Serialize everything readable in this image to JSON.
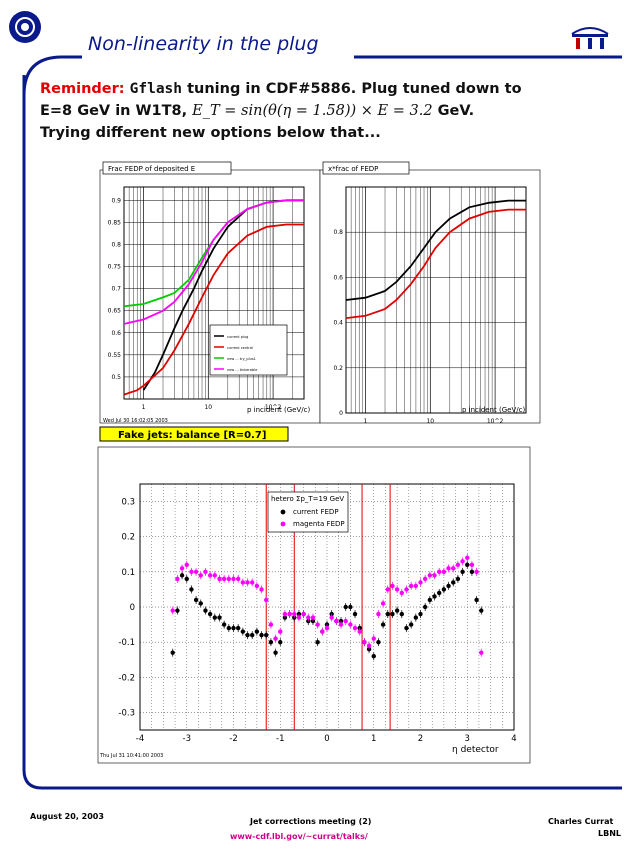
{
  "header": {
    "title": "Non-linearity in the plug"
  },
  "reminder": {
    "label": "Reminder:",
    "code": "Gflash",
    "line1_rest": " tuning in CDF#5886. Plug tuned down to",
    "line2_pre": "E=8 GeV in W1T8, ",
    "line2_formula": "E_T = sin(θ(η = 1.58)) × E = 3.2",
    "line2_post": " GeV.",
    "line3": "Trying different new options below that..."
  },
  "charts": {
    "top_left": {
      "title": "Frac FEDP of deposited E",
      "xlabel": "p incident (GeV/c)",
      "date": "Wed Jul 30 16:02:05 2003",
      "legend": [
        "current plug",
        "current central",
        "new ... try_plus1",
        "new ... tinkerable"
      ]
    },
    "top_right": {
      "title": "x*frac of FEDP",
      "xlabel": "p incident (GeV/c)"
    },
    "bottom": {
      "label": "Fake jets: balance [R=0.7]",
      "xlabel": "η detector",
      "date": "Thu Jul 31 10:41:00 2003",
      "legend_title": "hetero Σp_T=19 GeV",
      "legend": [
        "current FEDP",
        "magenta FEDP"
      ]
    }
  },
  "chart_data": [
    {
      "type": "line",
      "title": "Frac FEDP of deposited E",
      "xlabel": "p incident (GeV/c)",
      "xscale": "log",
      "xlim": [
        0.5,
        300
      ],
      "ylim": [
        0.45,
        0.93
      ],
      "ytick_labels": [
        "0.5",
        "0.55",
        "0.6",
        "0.65",
        "0.7",
        "0.75",
        "0.8",
        "0.85",
        "0.9"
      ],
      "xtick_labels": [
        "1",
        "10",
        "10^2"
      ],
      "grid": true,
      "legend_placement": "bottom-right",
      "series": [
        {
          "name": "current plug",
          "color": "#000000",
          "x": [
            1.0,
            1.5,
            2,
            3,
            4,
            6,
            8,
            12,
            20,
            40,
            80,
            160,
            300
          ],
          "y": [
            0.47,
            0.51,
            0.55,
            0.61,
            0.65,
            0.7,
            0.74,
            0.79,
            0.84,
            0.88,
            0.895,
            0.9,
            0.9
          ]
        },
        {
          "name": "current central",
          "color": "#e00000",
          "x": [
            0.5,
            0.8,
            1,
            2,
            3,
            5,
            8,
            12,
            20,
            40,
            80,
            160,
            300
          ],
          "y": [
            0.46,
            0.47,
            0.48,
            0.52,
            0.56,
            0.62,
            0.68,
            0.73,
            0.78,
            0.82,
            0.84,
            0.845,
            0.845
          ]
        },
        {
          "name": "new ... try_plus1",
          "color": "#00cc00",
          "x": [
            0.5,
            1,
            2,
            3,
            5,
            8,
            12,
            20,
            40,
            80,
            160,
            300
          ],
          "y": [
            0.66,
            0.665,
            0.68,
            0.69,
            0.72,
            0.77,
            0.81,
            0.85,
            0.88,
            0.895,
            0.9,
            0.9
          ]
        },
        {
          "name": "new ... tinkerable",
          "color": "#ff00ff",
          "x": [
            0.5,
            1,
            2,
            3,
            5,
            8,
            12,
            20,
            40,
            80,
            160,
            300
          ],
          "y": [
            0.62,
            0.63,
            0.65,
            0.67,
            0.71,
            0.76,
            0.81,
            0.85,
            0.88,
            0.895,
            0.9,
            0.9
          ]
        }
      ]
    },
    {
      "type": "line",
      "title": "x*frac of FEDP",
      "xlabel": "p incident (GeV/c)",
      "xscale": "log",
      "xlim": [
        0.5,
        300
      ],
      "ylim": [
        0,
        1.0
      ],
      "ytick_labels": [
        "0",
        "0.2",
        "0.4",
        "0.6",
        "0.8"
      ],
      "xtick_labels": [
        "1",
        "10",
        "10^2"
      ],
      "grid": true,
      "series": [
        {
          "name": "",
          "color": "#000000",
          "x": [
            0.5,
            1,
            2,
            3,
            5,
            8,
            12,
            20,
            40,
            80,
            160,
            300
          ],
          "y": [
            0.5,
            0.51,
            0.54,
            0.58,
            0.65,
            0.73,
            0.8,
            0.86,
            0.91,
            0.93,
            0.94,
            0.94
          ]
        },
        {
          "name": "",
          "color": "#e00000",
          "x": [
            0.5,
            1,
            2,
            3,
            5,
            8,
            12,
            20,
            40,
            80,
            160,
            300
          ],
          "y": [
            0.42,
            0.43,
            0.46,
            0.5,
            0.57,
            0.65,
            0.73,
            0.8,
            0.86,
            0.89,
            0.9,
            0.9
          ]
        }
      ]
    },
    {
      "type": "scatter",
      "title": "Fake jets: balance [R=0.7]",
      "xlabel": "η detector",
      "xlim": [
        -4,
        4
      ],
      "ylim": [
        -0.35,
        0.35
      ],
      "ytick_labels": [
        "-0.3",
        "-0.2",
        "-0.1",
        "0",
        "0.1",
        "0.2",
        "0.3"
      ],
      "xtick_labels": [
        "-4",
        "-3",
        "-2",
        "-1",
        "0",
        "1",
        "2",
        "3",
        "4"
      ],
      "grid": true,
      "legend_placement": "top-right",
      "vertical_lines": [
        -1.3,
        -0.7,
        0.75,
        1.35
      ],
      "series": [
        {
          "name": "current FEDP",
          "color": "#000000",
          "x": [
            -3.3,
            -3.2,
            -3.1,
            -3.0,
            -2.9,
            -2.8,
            -2.7,
            -2.6,
            -2.5,
            -2.4,
            -2.3,
            -2.2,
            -2.1,
            -2.0,
            -1.9,
            -1.8,
            -1.7,
            -1.6,
            -1.5,
            -1.4,
            -1.3,
            -1.2,
            -1.1,
            -1.0,
            -0.9,
            -0.8,
            -0.7,
            -0.6,
            -0.5,
            -0.4,
            -0.3,
            -0.2,
            -0.1,
            0.0,
            0.1,
            0.2,
            0.3,
            0.4,
            0.5,
            0.6,
            0.7,
            0.8,
            0.9,
            1.0,
            1.1,
            1.2,
            1.3,
            1.4,
            1.5,
            1.6,
            1.7,
            1.8,
            1.9,
            2.0,
            2.1,
            2.2,
            2.3,
            2.4,
            2.5,
            2.6,
            2.7,
            2.8,
            2.9,
            3.0,
            3.1,
            3.2,
            3.3
          ],
          "y": [
            -0.13,
            -0.01,
            0.09,
            0.08,
            0.05,
            0.02,
            0.01,
            -0.01,
            -0.02,
            -0.03,
            -0.03,
            -0.05,
            -0.06,
            -0.06,
            -0.06,
            -0.07,
            -0.08,
            -0.08,
            -0.07,
            -0.08,
            -0.08,
            -0.1,
            -0.13,
            -0.1,
            -0.03,
            -0.02,
            -0.03,
            -0.02,
            -0.02,
            -0.04,
            -0.04,
            -0.1,
            -0.07,
            -0.05,
            -0.02,
            -0.04,
            -0.04,
            0.0,
            0.0,
            -0.02,
            -0.06,
            -0.1,
            -0.12,
            -0.14,
            -0.1,
            -0.05,
            -0.02,
            -0.02,
            -0.01,
            -0.02,
            -0.06,
            -0.05,
            -0.03,
            -0.02,
            0.0,
            0.02,
            0.03,
            0.04,
            0.05,
            0.06,
            0.07,
            0.08,
            0.1,
            0.12,
            0.1,
            0.02,
            -0.01
          ]
        },
        {
          "name": "magenta FEDP",
          "color": "#ff00ff",
          "x": [
            -3.3,
            -3.2,
            -3.1,
            -3.0,
            -2.9,
            -2.8,
            -2.7,
            -2.6,
            -2.5,
            -2.4,
            -2.3,
            -2.2,
            -2.1,
            -2.0,
            -1.9,
            -1.8,
            -1.7,
            -1.6,
            -1.5,
            -1.4,
            -1.3,
            -1.2,
            -1.1,
            -1.0,
            -0.9,
            -0.8,
            -0.7,
            -0.6,
            -0.5,
            -0.4,
            -0.3,
            -0.2,
            -0.1,
            0.0,
            0.1,
            0.2,
            0.3,
            0.4,
            0.5,
            0.6,
            0.7,
            0.8,
            0.9,
            1.0,
            1.1,
            1.2,
            1.3,
            1.4,
            1.5,
            1.6,
            1.7,
            1.8,
            1.9,
            2.0,
            2.1,
            2.2,
            2.3,
            2.4,
            2.5,
            2.6,
            2.7,
            2.8,
            2.9,
            3.0,
            3.1,
            3.2,
            3.3
          ],
          "y": [
            -0.01,
            0.08,
            0.11,
            0.12,
            0.1,
            0.1,
            0.09,
            0.1,
            0.09,
            0.09,
            0.08,
            0.08,
            0.08,
            0.08,
            0.08,
            0.07,
            0.07,
            0.07,
            0.06,
            0.05,
            0.02,
            -0.05,
            -0.09,
            -0.07,
            -0.02,
            -0.02,
            -0.02,
            -0.03,
            -0.02,
            -0.03,
            -0.03,
            -0.05,
            -0.07,
            -0.06,
            -0.03,
            -0.04,
            -0.05,
            -0.04,
            -0.05,
            -0.06,
            -0.07,
            -0.1,
            -0.11,
            -0.09,
            -0.02,
            0.01,
            0.05,
            0.06,
            0.05,
            0.04,
            0.05,
            0.06,
            0.06,
            0.07,
            0.08,
            0.09,
            0.09,
            0.1,
            0.1,
            0.11,
            0.11,
            0.12,
            0.13,
            0.14,
            0.12,
            0.1,
            -0.13
          ]
        }
      ]
    }
  ],
  "footer": {
    "date": "August 20, 2003",
    "meeting": "Jet corrections meeting (2)",
    "url": "www-cdf.lbl.gov/~currat/talks/",
    "author": "Charles Currat",
    "institution": "LBNL"
  },
  "colors": {
    "title_blue": "#0b1a8a",
    "frame_blue": "#0b1a8a",
    "reminder_red": "#e00000",
    "label_yellow": "#ffff00",
    "footer_magenta": "#d0008a"
  }
}
